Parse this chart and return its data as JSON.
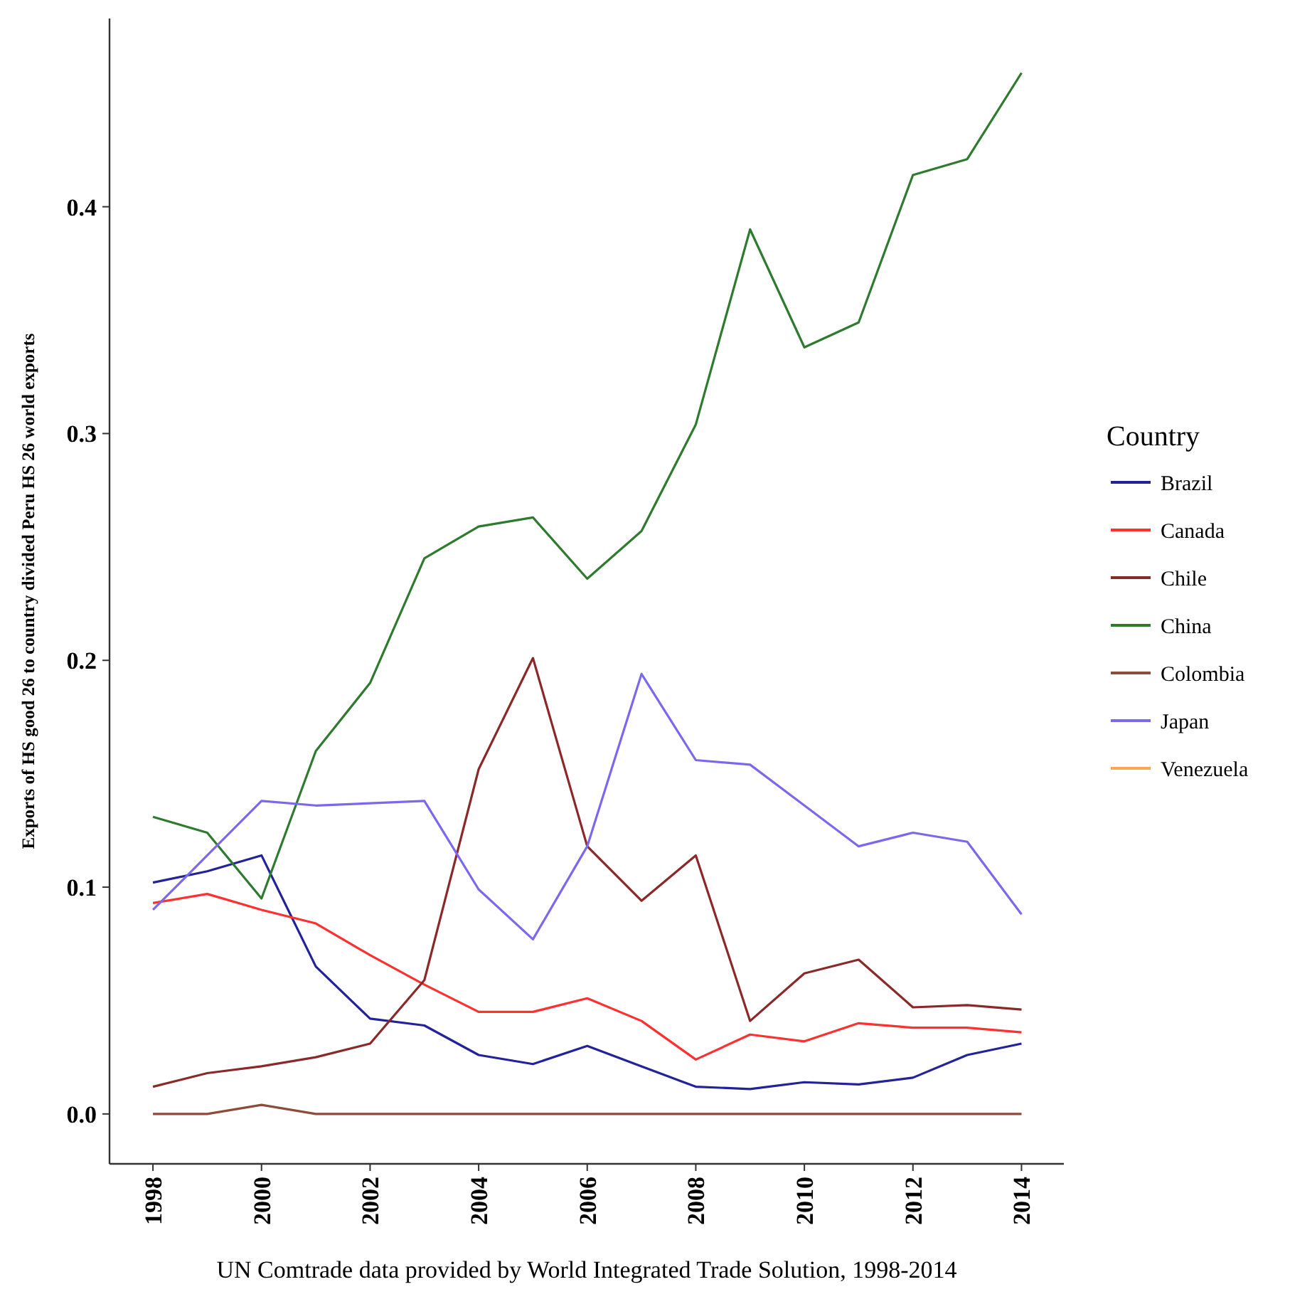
{
  "chart_data": {
    "type": "line",
    "xlabel": "UN Comtrade data provided by World Integrated Trade Solution, 1998-2014",
    "ylabel": "Exports of HS good 26 to country divided Peru HS 26 world exports",
    "legend_title": "Country",
    "legend": "right",
    "grid": false,
    "x": [
      1998,
      1999,
      2000,
      2001,
      2002,
      2003,
      2004,
      2005,
      2006,
      2007,
      2008,
      2009,
      2010,
      2011,
      2012,
      2013,
      2014
    ],
    "xlim": [
      1997.2,
      2014.78
    ],
    "xticks": [
      1998,
      2000,
      2002,
      2004,
      2006,
      2008,
      2010,
      2012,
      2014
    ],
    "ylim": [
      -0.022,
      0.483
    ],
    "yticks": [
      {
        "value": 0,
        "label": "0.0"
      },
      {
        "value": 0.1,
        "label": "0.1"
      },
      {
        "value": 0.2,
        "label": "0.2"
      },
      {
        "value": 0.3,
        "label": "0.3"
      },
      {
        "value": 0.4,
        "label": "0.4"
      }
    ],
    "series": [
      {
        "name": "Brazil",
        "color": "#22229a",
        "values": [
          0.102,
          0.107,
          0.114,
          0.065,
          0.042,
          0.039,
          0.026,
          0.022,
          0.03,
          0.021,
          0.012,
          0.011,
          0.014,
          0.013,
          0.016,
          0.026,
          0.031
        ]
      },
      {
        "name": "Canada",
        "color": "#ff3030",
        "values": [
          0.093,
          0.097,
          0.09,
          0.084,
          0.07,
          0.057,
          0.045,
          0.045,
          0.051,
          0.041,
          0.024,
          0.035,
          0.032,
          0.04,
          0.038,
          0.038,
          0.036
        ]
      },
      {
        "name": "Chile",
        "color": "#8b2828",
        "values": [
          0.012,
          0.018,
          0.021,
          0.025,
          0.031,
          0.059,
          0.152,
          0.201,
          0.118,
          0.094,
          0.114,
          0.041,
          0.062,
          0.068,
          0.047,
          0.048,
          0.046
        ]
      },
      {
        "name": "China",
        "color": "#2e7a2e",
        "values": [
          0.131,
          0.124,
          0.095,
          0.16,
          0.19,
          0.245,
          0.259,
          0.263,
          0.236,
          0.257,
          0.304,
          0.39,
          0.338,
          0.349,
          0.414,
          0.421,
          0.459
        ]
      },
      {
        "name": "Colombia",
        "color": "#8b4c39",
        "values": [
          0,
          0,
          0.004,
          0,
          0,
          0,
          0,
          0,
          0,
          0,
          0,
          0,
          0,
          0,
          0,
          0,
          0
        ]
      },
      {
        "name": "Japan",
        "color": "#7b68ee",
        "values": [
          0.09,
          0.114,
          0.138,
          0.136,
          0.137,
          0.138,
          0.099,
          0.077,
          0.118,
          0.194,
          0.156,
          0.154,
          0.136,
          0.118,
          0.124,
          0.12,
          0.088
        ]
      },
      {
        "name": "Venezuela",
        "color": "#ffa54f",
        "values": [
          null,
          null,
          null,
          null,
          null,
          null,
          null,
          null,
          null,
          null,
          null,
          null,
          null,
          null,
          null,
          null,
          null
        ]
      }
    ]
  }
}
